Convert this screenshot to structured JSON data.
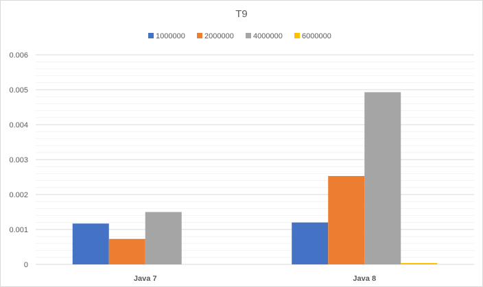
{
  "chart_data": {
    "type": "bar",
    "title": "T9",
    "xlabel": "",
    "ylabel": "",
    "categories": [
      "Java 7",
      "Java 8"
    ],
    "series": [
      {
        "name": "1000000",
        "color": "#4472c4",
        "values": [
          0.00117,
          0.0012
        ]
      },
      {
        "name": "2000000",
        "color": "#ed7d31",
        "values": [
          0.00073,
          0.00253
        ]
      },
      {
        "name": "4000000",
        "color": "#a5a5a5",
        "values": [
          0.0015,
          0.00493
        ]
      },
      {
        "name": "6000000",
        "color": "#ffc000",
        "values": [
          0,
          4e-05
        ]
      }
    ],
    "ylim": [
      0,
      0.006
    ],
    "ytick_labels": [
      "0",
      "0.001",
      "0.002",
      "0.003",
      "0.004",
      "0.005",
      "0.006"
    ],
    "grid": true,
    "minor_grid": true,
    "legend": "top-center"
  }
}
